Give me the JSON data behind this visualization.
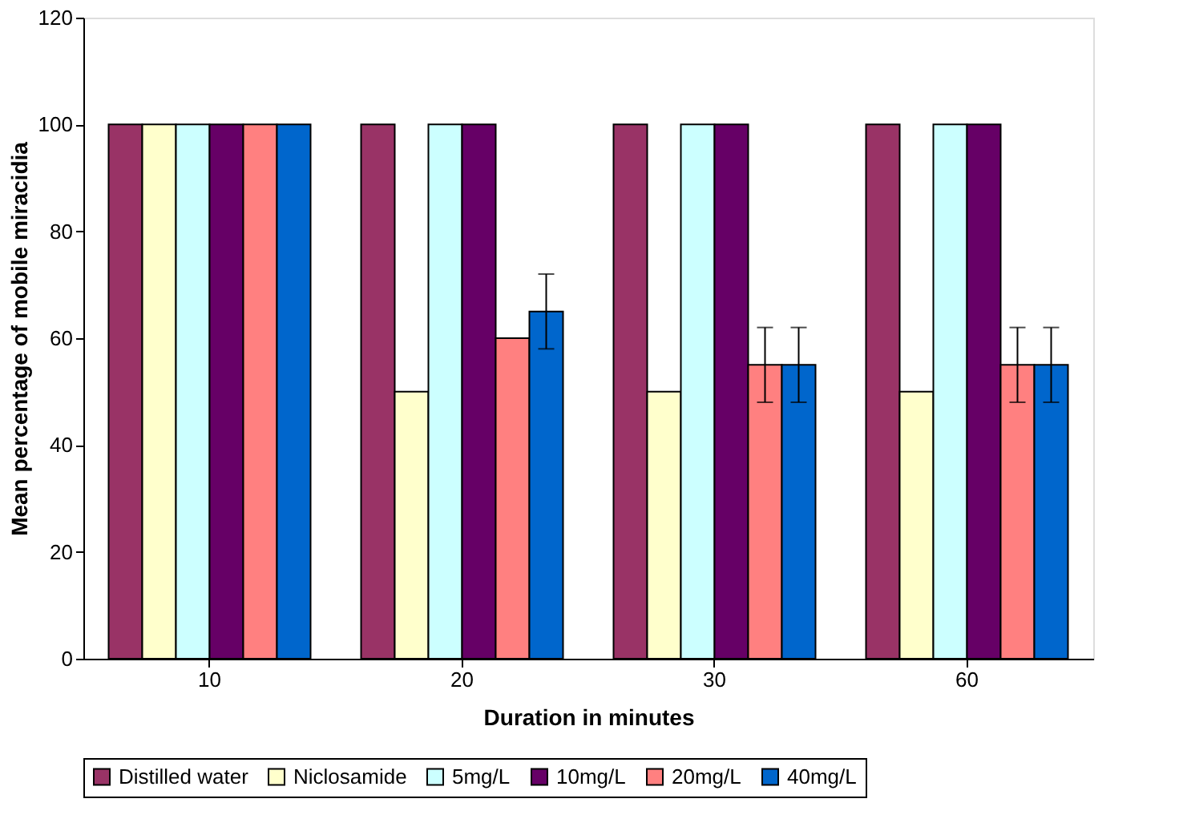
{
  "chart_data": {
    "type": "bar",
    "xlabel": "Duration in minutes",
    "ylabel": "Mean percentage of mobile miracidia",
    "categories": [
      "10",
      "20",
      "30",
      "60"
    ],
    "series": [
      {
        "name": "Distilled water",
        "color": "#993366",
        "values": [
          100,
          100,
          100,
          100
        ]
      },
      {
        "name": "Niclosamide",
        "color": "#ffffcc",
        "values": [
          100,
          50,
          50,
          50
        ]
      },
      {
        "name": "5mg/L",
        "color": "#ccffff",
        "values": [
          100,
          100,
          100,
          100
        ]
      },
      {
        "name": "10mg/L",
        "color": "#660066",
        "values": [
          100,
          100,
          100,
          100
        ]
      },
      {
        "name": "20mg/L",
        "color": "#ff8080",
        "values": [
          100,
          60,
          55,
          55
        ],
        "errors": [
          null,
          null,
          7,
          7
        ]
      },
      {
        "name": "40mg/L",
        "color": "#0066cc",
        "values": [
          100,
          65,
          55,
          55
        ],
        "errors": [
          null,
          7,
          7,
          7
        ]
      }
    ],
    "ylim": [
      0,
      120
    ],
    "yticks": [
      0,
      20,
      40,
      60,
      80,
      100,
      120
    ],
    "grid": false,
    "legend": "bottom"
  }
}
